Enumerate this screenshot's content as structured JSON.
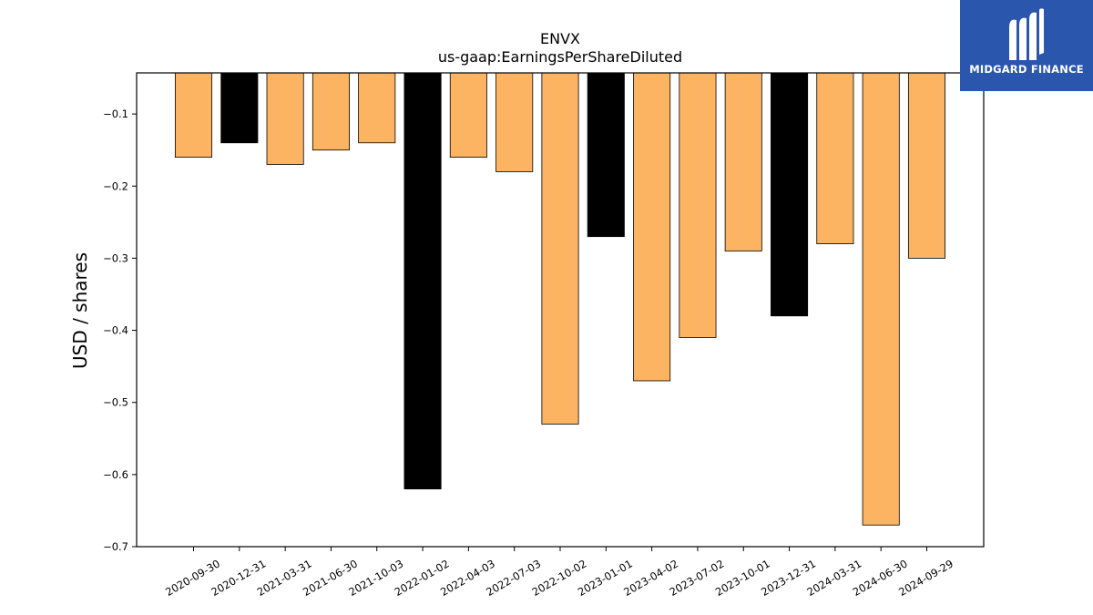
{
  "chart_data": {
    "type": "bar",
    "title": "ENVX",
    "subtitle": "us-gaap:EarningsPerShareDiluted",
    "ylabel": "USD / shares",
    "xlabel": "",
    "ylim": [
      -0.7,
      -0.043
    ],
    "yticks": [
      -0.1,
      -0.2,
      -0.3,
      -0.4,
      -0.5,
      -0.6,
      -0.7
    ],
    "ytick_labels": [
      "−0.1",
      "−0.2",
      "−0.3",
      "−0.4",
      "−0.5",
      "−0.6",
      "−0.7"
    ],
    "grid": false,
    "categories": [
      "2020-09-30",
      "2020-12-31",
      "2021-03-31",
      "2021-06-30",
      "2021-10-03",
      "2022-01-02",
      "2022-04-03",
      "2022-07-03",
      "2022-10-02",
      "2023-01-01",
      "2023-04-02",
      "2023-07-02",
      "2023-10-01",
      "2023-12-31",
      "2024-03-31",
      "2024-06-30",
      "2024-09-29"
    ],
    "values": [
      -0.16,
      -0.14,
      -0.17,
      -0.15,
      -0.14,
      -0.62,
      -0.16,
      -0.18,
      -0.53,
      -0.27,
      -0.47,
      -0.41,
      -0.29,
      -0.38,
      -0.28,
      -0.67,
      -0.3
    ],
    "bar_colors": [
      "#fdb462",
      "#000000",
      "#fdb462",
      "#fdb462",
      "#fdb462",
      "#000000",
      "#fdb462",
      "#fdb462",
      "#fdb462",
      "#000000",
      "#fdb462",
      "#fdb462",
      "#fdb462",
      "#000000",
      "#fdb462",
      "#fdb462",
      "#fdb462"
    ]
  },
  "logo": {
    "text": "MIDGARD FINANCE",
    "background": "#2a56ad"
  }
}
